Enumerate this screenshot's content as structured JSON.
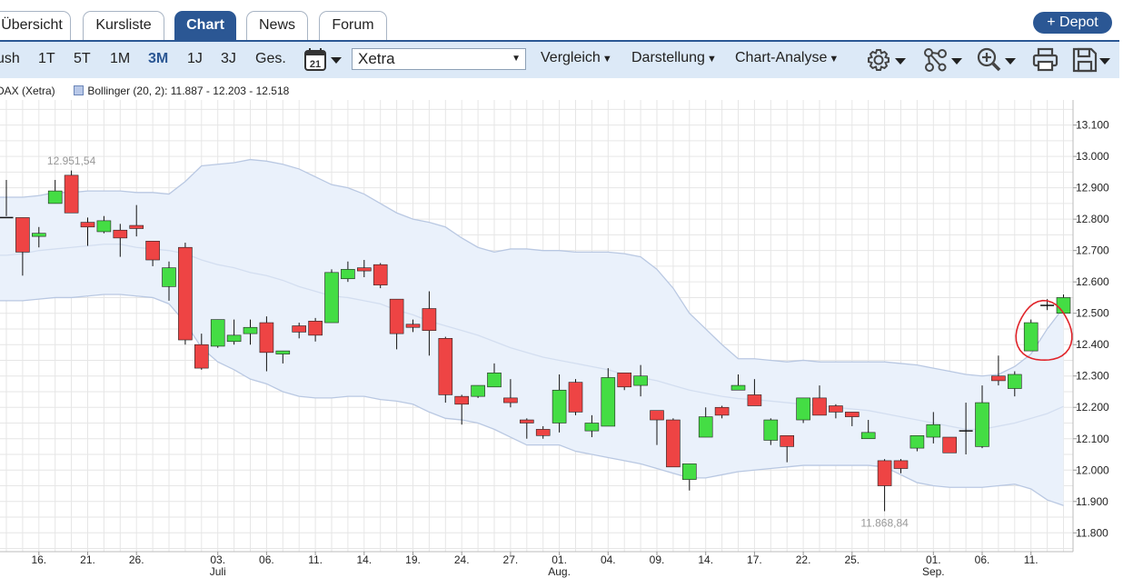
{
  "tabs": [
    {
      "label": "Übersicht",
      "active": false
    },
    {
      "label": "Kursliste",
      "active": false
    },
    {
      "label": "Chart",
      "active": true
    },
    {
      "label": "News",
      "active": false
    },
    {
      "label": "Forum",
      "active": false
    }
  ],
  "depot_button": "+ Depot",
  "toolbar": {
    "ranges": [
      "ush",
      "1T",
      "5T",
      "1M",
      "3M",
      "1J",
      "3J",
      "Ges."
    ],
    "active_range": "3M",
    "calendar_day": "21",
    "exchange": "Xetra",
    "menus": [
      "Vergleich",
      "Darstellung",
      "Chart-Analyse"
    ]
  },
  "legend": {
    "series": "DAX (Xetra)",
    "indicator": "Bollinger (20, 2): 11.887 - 12.203 - 12.518"
  },
  "colors": {
    "up": "#44dd44",
    "down": "#ee4444",
    "band_fill": "#eaf1fb",
    "band_line": "#b9c8e2",
    "accent": "#2b5794",
    "annotation": "#e0242a"
  },
  "chart_data": {
    "type": "candlestick",
    "ylim": [
      11740,
      13180
    ],
    "y_ticks": [
      13100,
      13000,
      12900,
      12800,
      12700,
      12600,
      12500,
      12400,
      12300,
      12200,
      12100,
      12000,
      11900,
      11800
    ],
    "y_tick_labels": [
      "13.100",
      "13.000",
      "12.900",
      "12.800",
      "12.700",
      "12.600",
      "12.500",
      "12.400",
      "12.300",
      "12.200",
      "12.100",
      "12.000",
      "11.900",
      "11.800"
    ],
    "x_labels": [
      {
        "idx": 2,
        "day": "16.",
        "month": ""
      },
      {
        "idx": 5,
        "day": "21.",
        "month": ""
      },
      {
        "idx": 8,
        "day": "26.",
        "month": ""
      },
      {
        "idx": 13,
        "day": "03.",
        "month": "Juli"
      },
      {
        "idx": 16,
        "day": "06.",
        "month": ""
      },
      {
        "idx": 19,
        "day": "11.",
        "month": ""
      },
      {
        "idx": 22,
        "day": "14.",
        "month": ""
      },
      {
        "idx": 25,
        "day": "19.",
        "month": ""
      },
      {
        "idx": 28,
        "day": "24.",
        "month": ""
      },
      {
        "idx": 31,
        "day": "27.",
        "month": ""
      },
      {
        "idx": 34,
        "day": "01.",
        "month": "Aug."
      },
      {
        "idx": 37,
        "day": "04.",
        "month": ""
      },
      {
        "idx": 40,
        "day": "09.",
        "month": ""
      },
      {
        "idx": 43,
        "day": "14.",
        "month": ""
      },
      {
        "idx": 46,
        "day": "17.",
        "month": ""
      },
      {
        "idx": 49,
        "day": "22.",
        "month": ""
      },
      {
        "idx": 52,
        "day": "25.",
        "month": ""
      },
      {
        "idx": 57,
        "day": "01.",
        "month": "Sep."
      },
      {
        "idx": 60,
        "day": "06.",
        "month": ""
      },
      {
        "idx": 63,
        "day": "11.",
        "month": ""
      }
    ],
    "candles": [
      [
        12805,
        12805,
        12925,
        12810
      ],
      [
        12805,
        12695,
        12805,
        12620
      ],
      [
        12745,
        12755,
        12775,
        12710
      ],
      [
        12850,
        12890,
        12925,
        12850
      ],
      [
        12940,
        12820,
        12955,
        12820
      ],
      [
        12790,
        12775,
        12805,
        12715
      ],
      [
        12760,
        12795,
        12810,
        12755
      ],
      [
        12765,
        12740,
        12785,
        12680
      ],
      [
        12780,
        12770,
        12845,
        12745
      ],
      [
        12730,
        12670,
        12730,
        12650
      ],
      [
        12585,
        12645,
        12665,
        12540
      ],
      [
        12710,
        12415,
        12725,
        12400
      ],
      [
        12400,
        12325,
        12435,
        12320
      ],
      [
        12395,
        12480,
        12480,
        12390
      ],
      [
        12410,
        12430,
        12480,
        12400
      ],
      [
        12435,
        12455,
        12480,
        12400
      ],
      [
        12470,
        12375,
        12490,
        12315
      ],
      [
        12370,
        12380,
        12380,
        12340
      ],
      [
        12460,
        12440,
        12470,
        12420
      ],
      [
        12475,
        12430,
        12485,
        12410
      ],
      [
        12470,
        12630,
        12640,
        12470
      ],
      [
        12610,
        12640,
        12665,
        12600
      ],
      [
        12645,
        12635,
        12670,
        12615
      ],
      [
        12655,
        12590,
        12660,
        12580
      ],
      [
        12545,
        12435,
        12545,
        12385
      ],
      [
        12465,
        12455,
        12480,
        12440
      ],
      [
        12515,
        12445,
        12570,
        12365
      ],
      [
        12420,
        12240,
        12425,
        12215
      ],
      [
        12235,
        12210,
        12240,
        12145
      ],
      [
        12235,
        12270,
        12270,
        12230
      ],
      [
        12265,
        12310,
        12340,
        12265
      ],
      [
        12230,
        12215,
        12290,
        12200
      ],
      [
        12160,
        12150,
        12165,
        12100
      ],
      [
        12130,
        12110,
        12140,
        12100
      ],
      [
        12150,
        12255,
        12305,
        12120
      ],
      [
        12280,
        12185,
        12290,
        12175
      ],
      [
        12125,
        12150,
        12175,
        12105
      ],
      [
        12140,
        12295,
        12325,
        12140
      ],
      [
        12310,
        12265,
        12310,
        12255
      ],
      [
        12270,
        12300,
        12335,
        12235
      ],
      [
        12190,
        12160,
        12190,
        12080
      ],
      [
        12160,
        12010,
        12165,
        12010
      ],
      [
        11970,
        12020,
        12020,
        11935
      ],
      [
        12105,
        12170,
        12200,
        12105
      ],
      [
        12200,
        12175,
        12205,
        12165
      ],
      [
        12255,
        12270,
        12305,
        12255
      ],
      [
        12240,
        12205,
        12290,
        12205
      ],
      [
        12095,
        12160,
        12165,
        12080
      ],
      [
        12110,
        12075,
        12110,
        12025
      ],
      [
        12160,
        12230,
        12230,
        12150
      ],
      [
        12230,
        12175,
        12270,
        12175
      ],
      [
        12205,
        12185,
        12210,
        12165
      ],
      [
        12185,
        12170,
        12185,
        12140
      ],
      [
        12100,
        12120,
        12160,
        12100
      ],
      [
        12030,
        11950,
        12035,
        11869
      ],
      [
        12030,
        12005,
        12035,
        11990
      ],
      [
        12070,
        12110,
        12110,
        12060
      ],
      [
        12105,
        12145,
        12185,
        12085
      ],
      [
        12105,
        12055,
        12105,
        12055
      ],
      [
        12125,
        12125,
        12215,
        12050
      ],
      [
        12075,
        12215,
        12270,
        12070
      ],
      [
        12300,
        12285,
        12365,
        12270
      ],
      [
        12260,
        12305,
        12315,
        12235
      ],
      [
        12380,
        12470,
        12480,
        12380
      ],
      [
        12525,
        12525,
        12545,
        12510
      ],
      [
        12500,
        12550,
        12560,
        12500
      ]
    ],
    "bollinger": {
      "upper": [
        12870,
        12870,
        12875,
        12885,
        12885,
        12890,
        12890,
        12890,
        12885,
        12885,
        12880,
        12920,
        12970,
        12975,
        12980,
        12990,
        12985,
        12975,
        12960,
        12935,
        12910,
        12900,
        12880,
        12850,
        12820,
        12800,
        12790,
        12775,
        12740,
        12710,
        12695,
        12705,
        12705,
        12700,
        12700,
        12695,
        12695,
        12695,
        12690,
        12680,
        12640,
        12580,
        12500,
        12450,
        12400,
        12355,
        12355,
        12350,
        12345,
        12350,
        12345,
        12345,
        12345,
        12345,
        12345,
        12340,
        12335,
        12325,
        12315,
        12305,
        12300,
        12305,
        12330,
        12370,
        12450,
        12518
      ],
      "middle": [
        12685,
        12690,
        12700,
        12705,
        12710,
        12715,
        12720,
        12720,
        12710,
        12705,
        12700,
        12690,
        12670,
        12655,
        12645,
        12630,
        12620,
        12605,
        12585,
        12570,
        12555,
        12550,
        12540,
        12530,
        12510,
        12495,
        12475,
        12460,
        12445,
        12430,
        12410,
        12390,
        12375,
        12360,
        12350,
        12340,
        12330,
        12320,
        12305,
        12295,
        12285,
        12270,
        12255,
        12245,
        12235,
        12228,
        12225,
        12220,
        12215,
        12210,
        12205,
        12200,
        12195,
        12190,
        12180,
        12170,
        12160,
        12150,
        12140,
        12130,
        12130,
        12140,
        12150,
        12165,
        12180,
        12203
      ],
      "lower": [
        12540,
        12540,
        12545,
        12550,
        12550,
        12555,
        12560,
        12560,
        12555,
        12550,
        12530,
        12470,
        12390,
        12345,
        12320,
        12290,
        12275,
        12250,
        12235,
        12230,
        12230,
        12235,
        12235,
        12225,
        12220,
        12210,
        12185,
        12165,
        12160,
        12150,
        12130,
        12105,
        12080,
        12080,
        12080,
        12060,
        12050,
        12040,
        12030,
        12020,
        12005,
        11990,
        11975,
        11975,
        11985,
        11995,
        12000,
        12005,
        12010,
        12015,
        12015,
        12015,
        12015,
        12015,
        12010,
        11985,
        11960,
        11950,
        11945,
        11945,
        11945,
        11950,
        11955,
        11940,
        11905,
        11887
      ]
    },
    "annotations": [
      {
        "idx": 4,
        "price": 12951.54,
        "label": "12.951,54",
        "side": "above"
      },
      {
        "idx": 54,
        "price": 11868.84,
        "label": "11.868,84",
        "side": "below"
      }
    ],
    "circle_highlight": {
      "idx_center": 63.8,
      "price_center": 12440,
      "idx_radius": 1.7,
      "price_radius": 95
    }
  }
}
